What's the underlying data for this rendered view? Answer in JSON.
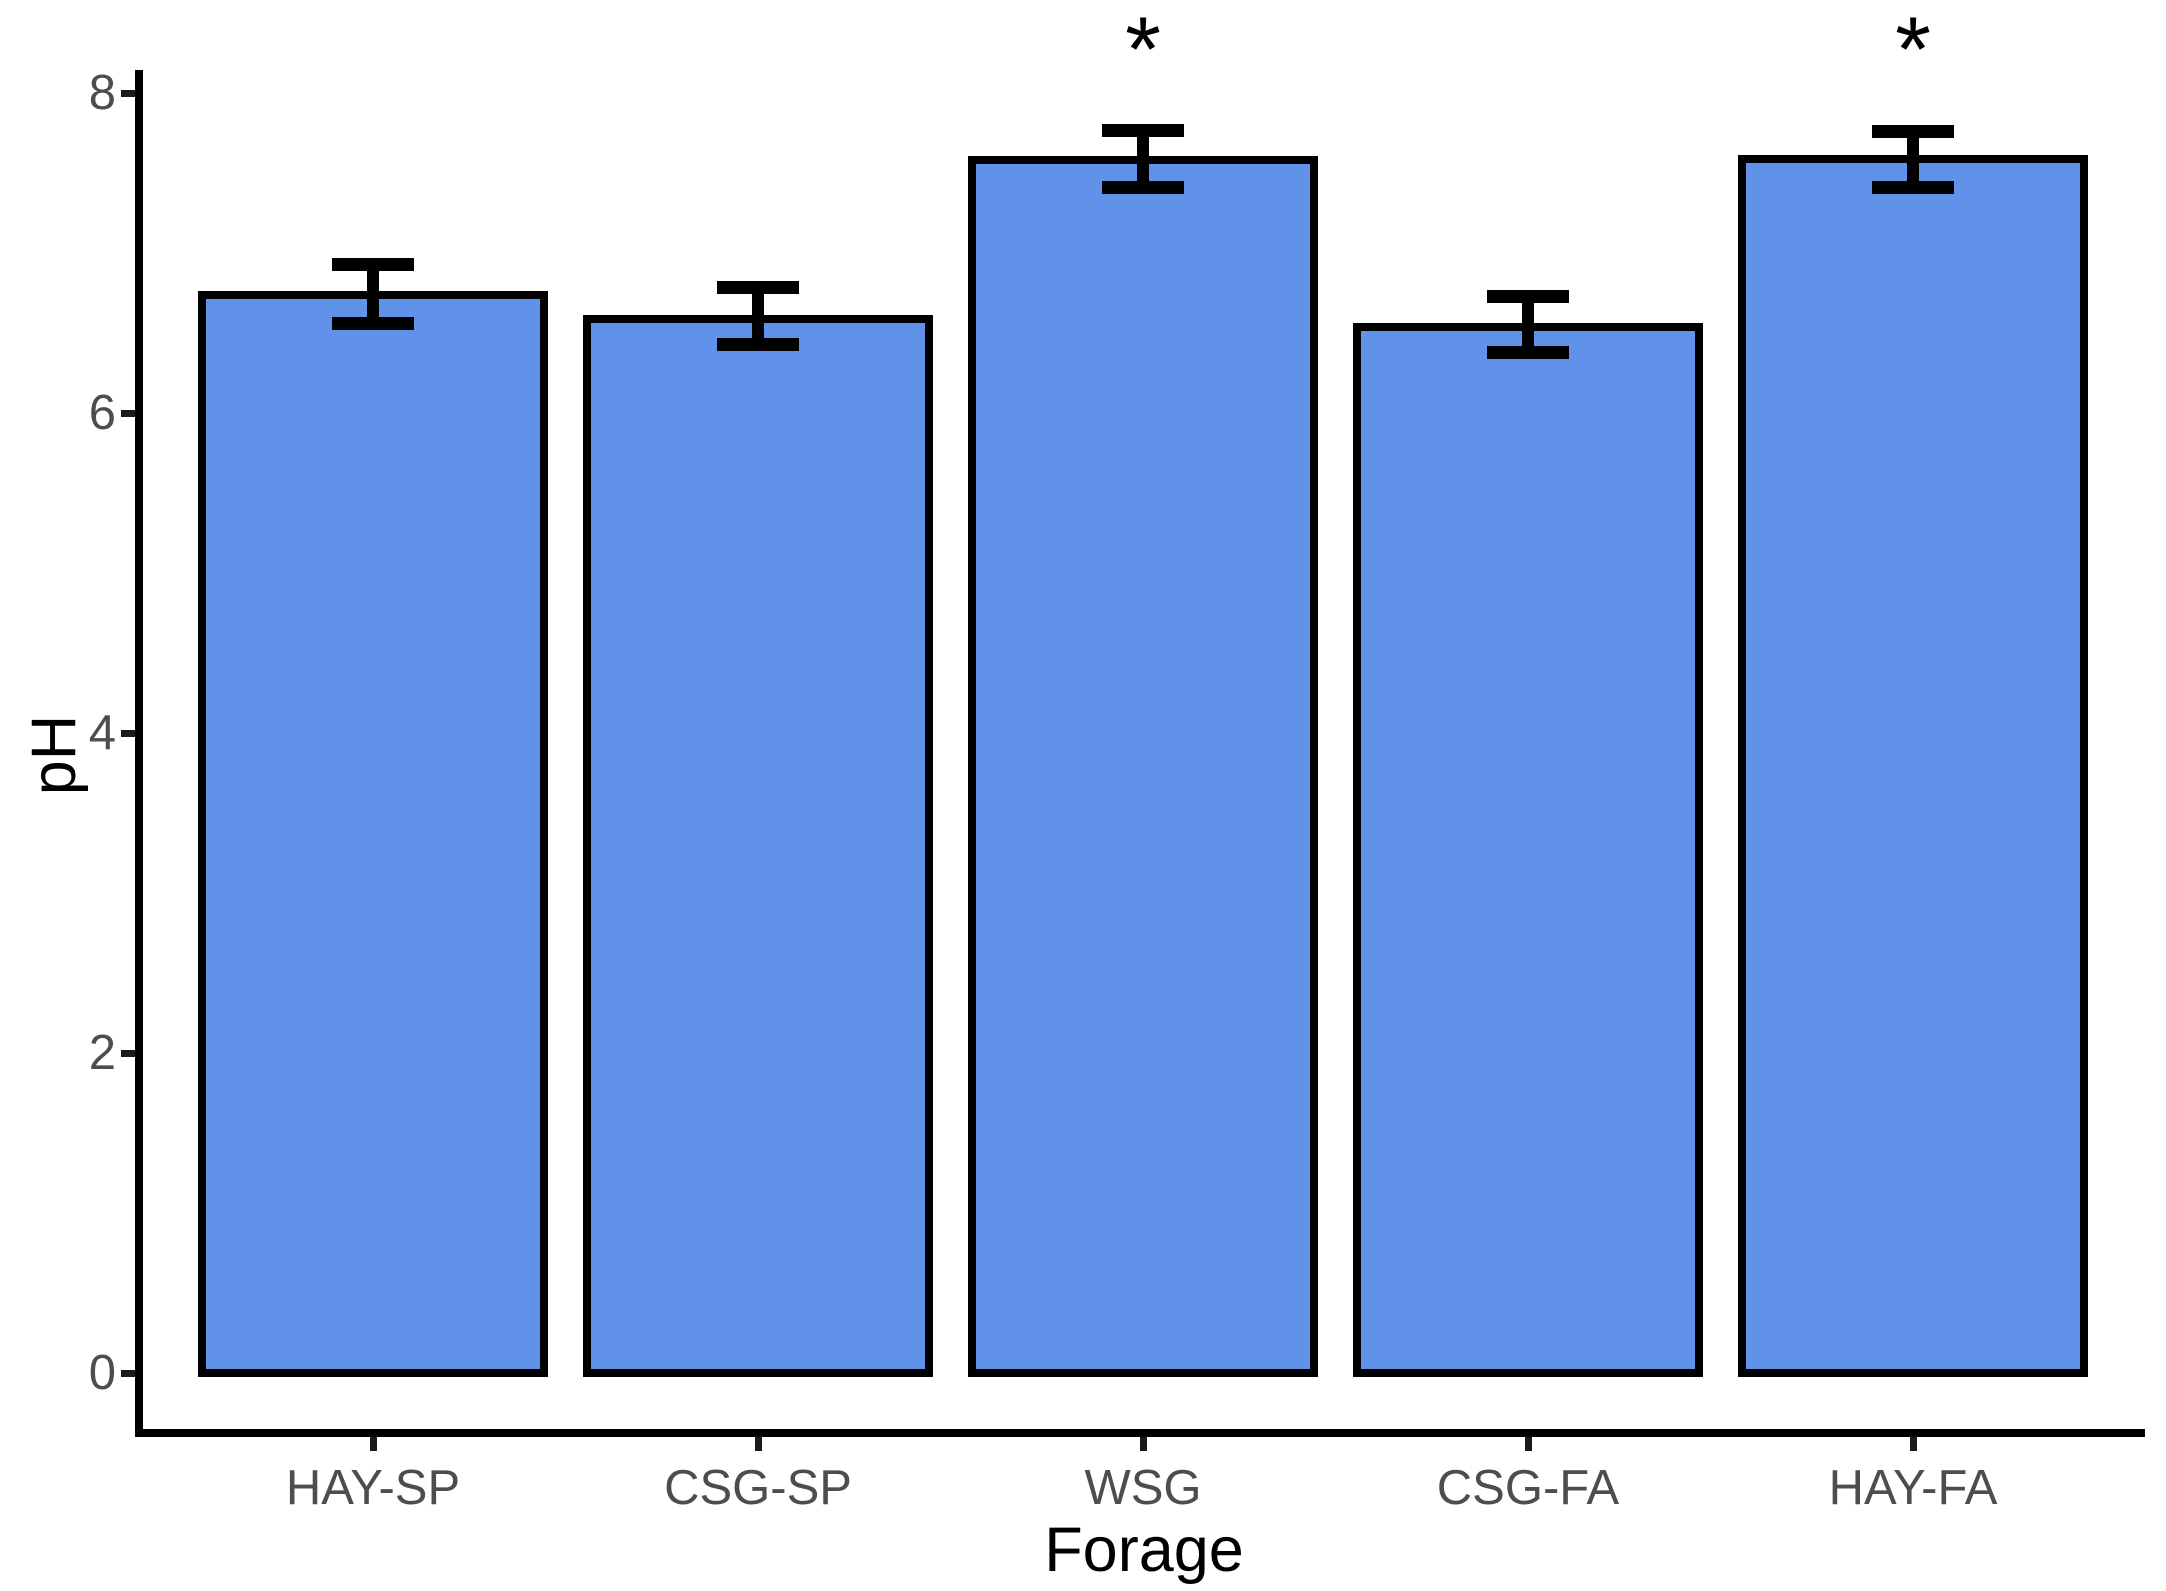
{
  "figure": {
    "background": "#FFFFFF",
    "title": ""
  },
  "chart_data": {
    "type": "bar",
    "title": "",
    "xlabel": "Forage",
    "ylabel": "pH",
    "categories": [
      "HAY-SP",
      "CSG-SP",
      "WSG",
      "CSG-FA",
      "HAY-FA"
    ],
    "values": [
      6.74,
      6.59,
      7.58,
      6.54,
      7.59
    ],
    "error_upper": [
      6.93,
      6.79,
      7.77,
      6.73,
      7.76
    ],
    "error_lower": [
      6.56,
      6.43,
      7.41,
      6.38,
      7.41
    ],
    "significance": [
      "",
      "",
      "*",
      "",
      "*"
    ],
    "ytick_labels": [
      "0",
      "2",
      "4",
      "6",
      "8"
    ],
    "ylim": [
      0,
      8
    ],
    "grid": false,
    "legend": "none",
    "colors": {
      "bar_fill": "#6192E9",
      "bar_border": "#000000",
      "axis_line": "#000000",
      "tick_label_text": "#4D4D4D",
      "axis_title_text": "#000000",
      "error_bar": "#000000",
      "significance_marker": "#000000"
    }
  }
}
